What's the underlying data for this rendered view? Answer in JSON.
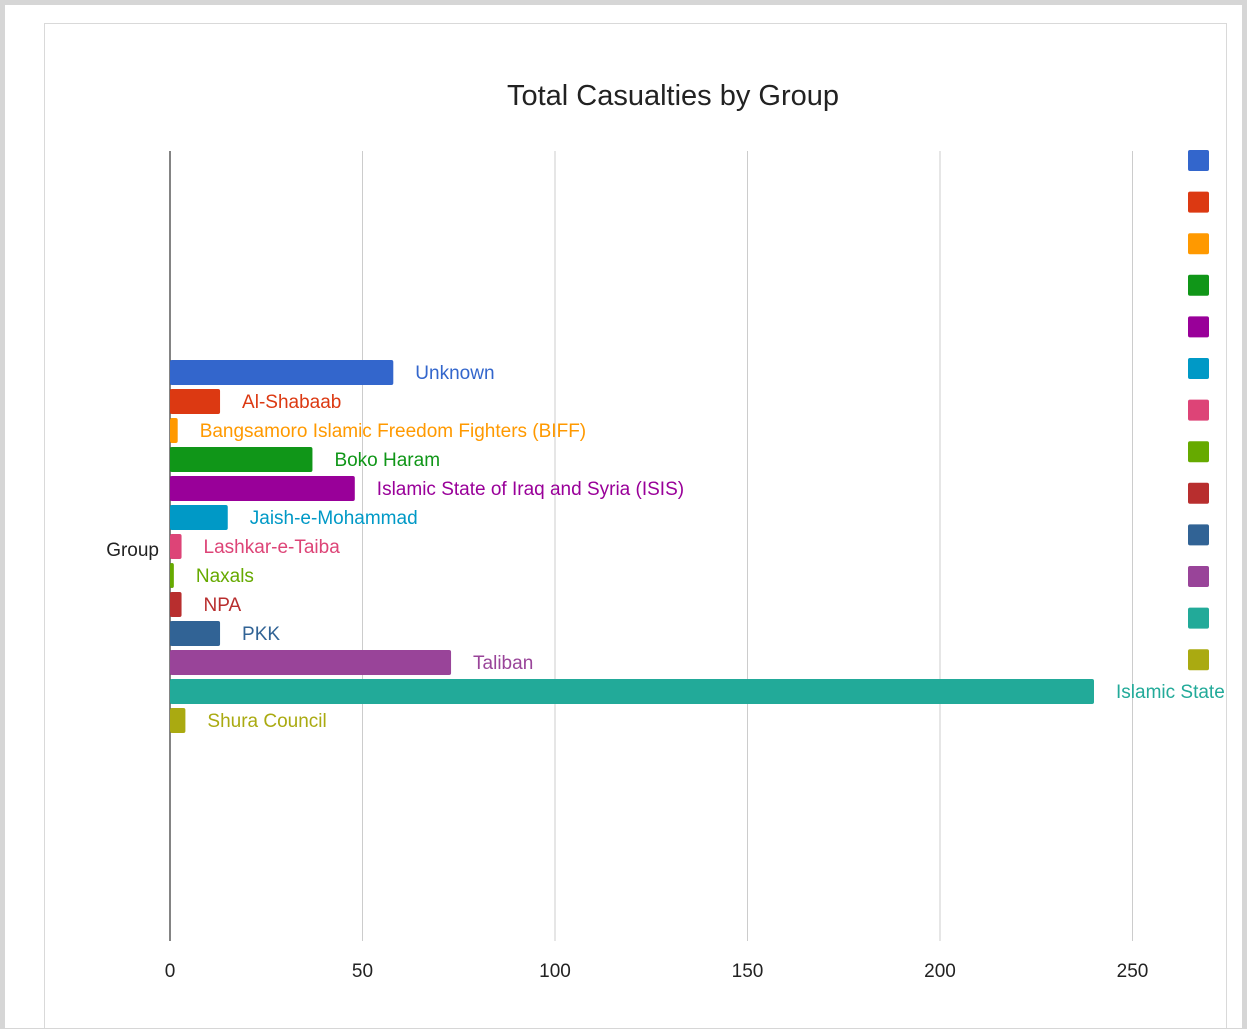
{
  "chart_data": {
    "type": "bar",
    "orientation": "horizontal",
    "title": "Total Casualties by Group",
    "ylabel": "Group",
    "xlabel": "",
    "xlim": [
      0,
      270
    ],
    "xticks": [
      0,
      50,
      100,
      150,
      200,
      250
    ],
    "grid": true,
    "legend": "right",
    "series": [
      {
        "name": "Unknown",
        "value": 58,
        "color": "#3366cc"
      },
      {
        "name": "Al-Shabaab",
        "value": 13,
        "color": "#dc3912"
      },
      {
        "name": "Bangsamoro Islamic Freedom Fighters (BIFF)",
        "value": 2,
        "color": "#ff9900"
      },
      {
        "name": "Boko Haram",
        "value": 37,
        "color": "#109618"
      },
      {
        "name": "Islamic State of Iraq and Syria (ISIS)",
        "value": 48,
        "color": "#990099"
      },
      {
        "name": "Jaish-e-Mohammad",
        "value": 15,
        "color": "#0099c6"
      },
      {
        "name": "Lashkar-e-Taiba",
        "value": 3,
        "color": "#dd4477"
      },
      {
        "name": "Naxals",
        "value": 1,
        "color": "#66aa00"
      },
      {
        "name": "NPA",
        "value": 3,
        "color": "#b82e2e"
      },
      {
        "name": "PKK",
        "value": 13,
        "color": "#316395"
      },
      {
        "name": "Taliban",
        "value": 73,
        "color": "#994499"
      },
      {
        "name": "Islamic State",
        "value": 240,
        "color": "#22aa99"
      },
      {
        "name": "Shura Council",
        "value": 4,
        "color": "#aaaa11"
      }
    ]
  }
}
